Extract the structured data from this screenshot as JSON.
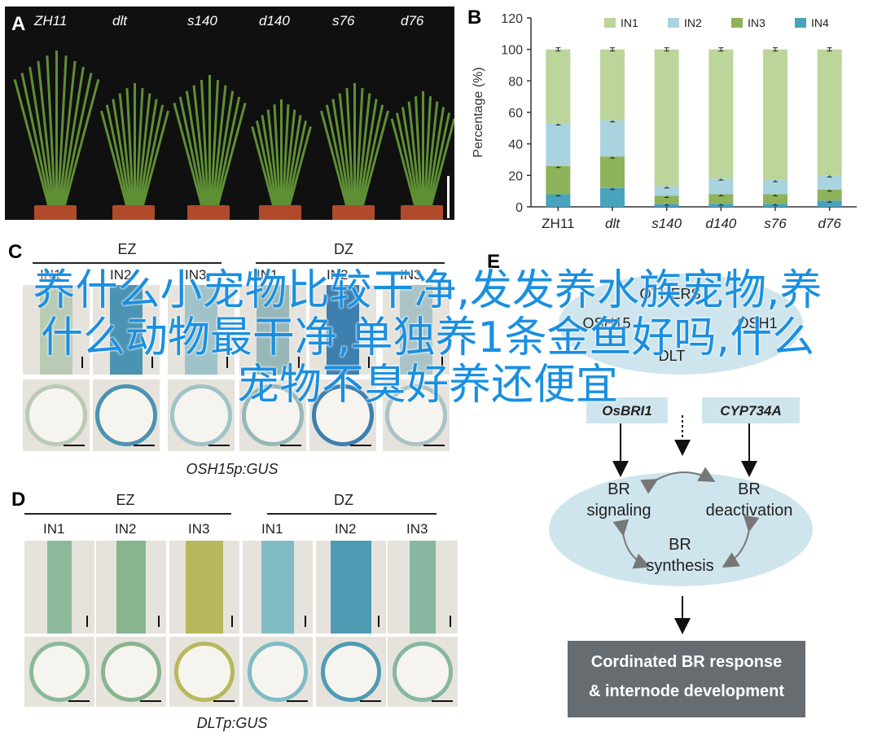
{
  "panel_a": {
    "label": "A",
    "plants": [
      "ZH11",
      "dlt",
      "s140",
      "d140",
      "s76",
      "d76"
    ]
  },
  "panel_b": {
    "label": "B"
  },
  "chart_data": {
    "type": "bar",
    "stacked": true,
    "categories": [
      "ZH11",
      "dlt",
      "s140",
      "d140",
      "s76",
      "d76"
    ],
    "series": [
      {
        "name": "IN4",
        "color": "#4aa3bd",
        "values": [
          8,
          12,
          2,
          2,
          2,
          4
        ]
      },
      {
        "name": "IN3",
        "color": "#8fb35a",
        "values": [
          18,
          20,
          5,
          6,
          6,
          7
        ]
      },
      {
        "name": "IN2",
        "color": "#a9d3de",
        "values": [
          27,
          23,
          6,
          10,
          9,
          9
        ]
      },
      {
        "name": "IN1",
        "color": "#bcd59a",
        "values": [
          47,
          45,
          87,
          82,
          83,
          80
        ]
      }
    ],
    "legend_order": [
      "IN1",
      "IN2",
      "IN3",
      "IN4"
    ],
    "ylabel": "Percentage (%)",
    "ylim": [
      0,
      120
    ],
    "yticks": [
      "0",
      "20",
      "40",
      "60",
      "80",
      "100",
      "120"
    ],
    "legend": "top"
  },
  "panel_c": {
    "label": "C",
    "group1": "EZ",
    "group2": "DZ",
    "cols": [
      "IN1",
      "IN2",
      "IN3",
      "IN1",
      "IN2",
      "IN3"
    ],
    "caption": "OSH15p:GUS"
  },
  "panel_d": {
    "label": "D",
    "group1": "EZ",
    "group2": "DZ",
    "cols": [
      "IN1",
      "IN2",
      "IN3",
      "IN1",
      "IN2",
      "IN3"
    ],
    "caption": "DLTp:GUS",
    "strip_colors": [
      "#8bb99a",
      "#88b48e",
      "#b8b85c",
      "#7fbcc4",
      "#4f9bb4",
      "#87b7a2"
    ]
  },
  "panel_e": {
    "label": "E",
    "genes": [
      "OTHERS",
      "OSH15",
      "OSH1",
      "DLT",
      "OsBRI1",
      "CYP734A"
    ],
    "cycle": [
      "BR\nsignaling",
      "BR\ndeactivation",
      "BR\nsynthesis"
    ],
    "result": "Cordinated BR response\n& internode development"
  },
  "overlay_text": "养什么小宠物比较干净,发发养水族宠物,养什么动物最干净,单独养1条金鱼好吗,什么宠物不臭好养还便宜"
}
